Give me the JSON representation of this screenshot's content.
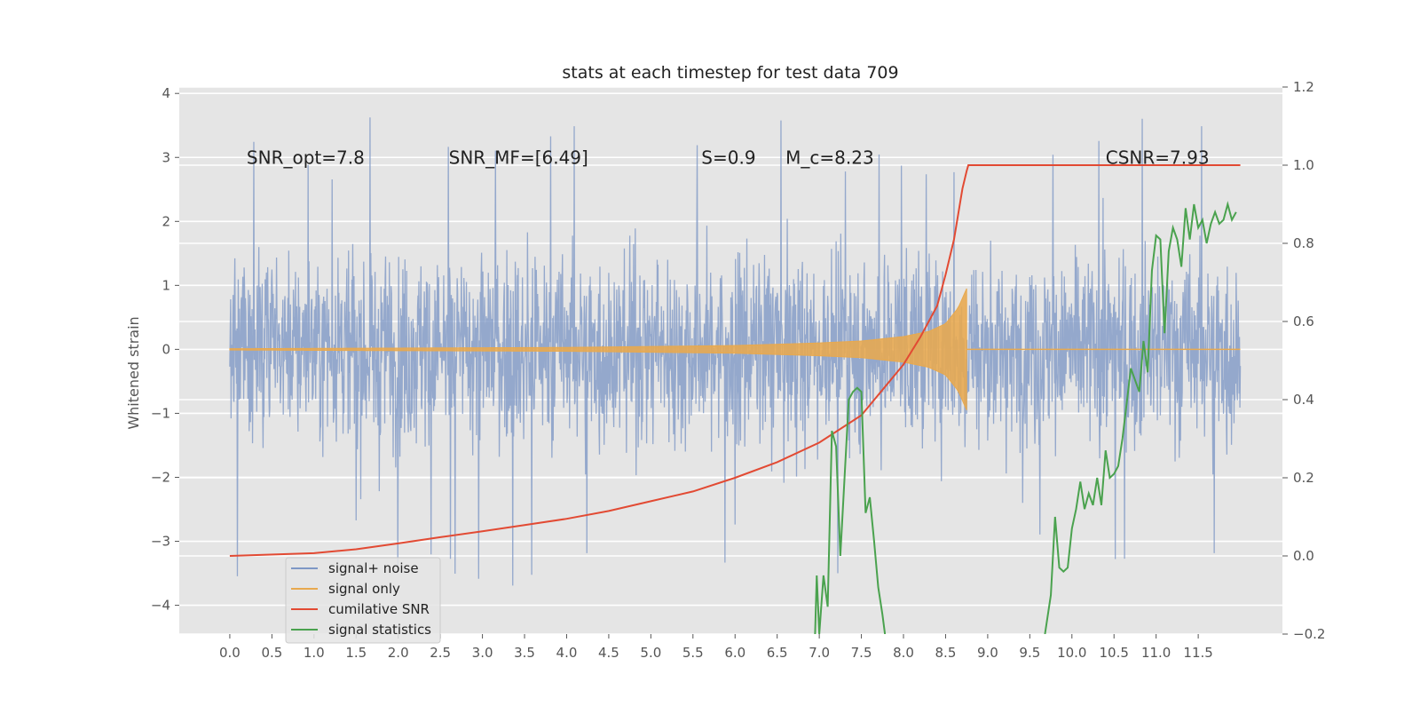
{
  "chart_data": {
    "type": "line",
    "title": "stats at each timestep for test data 709",
    "xlabel": "",
    "ylabel": "Whitened strain",
    "y2label": "",
    "xlim": [
      -0.6,
      12.5
    ],
    "ylim": [
      -4.45,
      4.1
    ],
    "y2lim": [
      -0.2,
      1.2
    ],
    "x_ticks": [
      "0.0",
      "0.5",
      "1.0",
      "1.5",
      "2.0",
      "2.5",
      "3.0",
      "3.5",
      "4.0",
      "4.5",
      "5.0",
      "5.5",
      "6.0",
      "6.5",
      "7.0",
      "7.5",
      "8.0",
      "8.5",
      "9.0",
      "9.5",
      "10.0",
      "10.5",
      "11.0",
      "11.5"
    ],
    "y_ticks": [
      "4",
      "3",
      "2",
      "1",
      "0",
      "−1",
      "−2",
      "−3",
      "−4"
    ],
    "y2_ticks": [
      "1.2",
      "1.0",
      "0.8",
      "0.6",
      "0.4",
      "0.2",
      "0.0",
      "−0.2"
    ],
    "grid": true,
    "legend_position": "lower-left",
    "annotations": [
      {
        "text": "SNR_opt=7.8",
        "x": 0.2,
        "y": 3.0
      },
      {
        "text": "SNR_MF=[6.49]",
        "x": 2.6,
        "y": 3.0
      },
      {
        "text": "S=0.9",
        "x": 5.6,
        "y": 3.0
      },
      {
        "text": "M_c=8.23",
        "x": 6.6,
        "y": 3.0
      },
      {
        "text": "CSNR=7.93",
        "x": 10.4,
        "y": 3.0
      }
    ],
    "series": [
      {
        "name": "signal+ noise",
        "axis": "left",
        "color": "#7f98c6",
        "description": "whitened strain noise, roughly +/-2.5 with peaks to about +/-3.7",
        "envelope_typical": 2.4,
        "envelope_peak": 3.7,
        "x_range": [
          0.0,
          12.0
        ]
      },
      {
        "name": "signal only",
        "axis": "left",
        "color": "#e8a94e",
        "description": "chirp signal growing in amplitude, ending at merger near t=8.75",
        "amplitude_points": [
          [
            0.0,
            0.01
          ],
          [
            4.0,
            0.03
          ],
          [
            6.0,
            0.06
          ],
          [
            7.0,
            0.1
          ],
          [
            7.5,
            0.13
          ],
          [
            8.0,
            0.2
          ],
          [
            8.3,
            0.28
          ],
          [
            8.5,
            0.4
          ],
          [
            8.65,
            0.65
          ],
          [
            8.75,
            0.95
          ]
        ],
        "merger_time": 8.75,
        "x_range": [
          0.0,
          12.0
        ]
      },
      {
        "name": "cumilative SNR",
        "axis": "right",
        "color": "#e24a33",
        "x": [
          0.0,
          1.0,
          1.5,
          2.0,
          2.5,
          3.0,
          3.5,
          4.0,
          4.5,
          5.0,
          5.5,
          6.0,
          6.5,
          7.0,
          7.5,
          8.0,
          8.2,
          8.4,
          8.5,
          8.6,
          8.7,
          8.75,
          8.77,
          12.0
        ],
        "y": [
          0.0,
          0.007,
          0.017,
          0.032,
          0.048,
          0.063,
          0.079,
          0.095,
          0.115,
          0.14,
          0.165,
          0.2,
          0.24,
          0.29,
          0.36,
          0.49,
          0.56,
          0.64,
          0.72,
          0.81,
          0.94,
          0.985,
          1.0,
          1.0
        ]
      },
      {
        "name": "signal statistics",
        "axis": "right",
        "color": "#4aa24e",
        "segments": [
          {
            "x": [
              6.95,
              6.97,
              7.0,
              7.05,
              7.1,
              7.15,
              7.2,
              7.25,
              7.3,
              7.35,
              7.4,
              7.45,
              7.5,
              7.55,
              7.6,
              7.65,
              7.7,
              7.75,
              7.78
            ],
            "y": [
              -0.2,
              -0.05,
              -0.2,
              -0.05,
              -0.13,
              0.32,
              0.28,
              0.0,
              0.2,
              0.4,
              0.42,
              0.43,
              0.42,
              0.11,
              0.15,
              0.04,
              -0.08,
              -0.15,
              -0.2
            ]
          },
          {
            "x": [
              9.68,
              9.75,
              9.8,
              9.85,
              9.9,
              9.95,
              10.0,
              10.05,
              10.1,
              10.15,
              10.2,
              10.25,
              10.3,
              10.35,
              10.4,
              10.45,
              10.5,
              10.55,
              10.6,
              10.7,
              10.8,
              10.85,
              10.9,
              10.95,
              11.0,
              11.05,
              11.1,
              11.15,
              11.2,
              11.25,
              11.3,
              11.35,
              11.4,
              11.45,
              11.5,
              11.55,
              11.6,
              11.65,
              11.7,
              11.75,
              11.8,
              11.85,
              11.9,
              11.95
            ],
            "y": [
              -0.2,
              -0.1,
              0.1,
              -0.03,
              -0.04,
              -0.03,
              0.07,
              0.12,
              0.19,
              0.12,
              0.16,
              0.13,
              0.2,
              0.13,
              0.27,
              0.2,
              0.21,
              0.23,
              0.3,
              0.48,
              0.42,
              0.55,
              0.47,
              0.73,
              0.82,
              0.81,
              0.57,
              0.78,
              0.84,
              0.81,
              0.74,
              0.89,
              0.81,
              0.9,
              0.84,
              0.86,
              0.8,
              0.85,
              0.88,
              0.85,
              0.86,
              0.9,
              0.86,
              0.88
            ]
          }
        ]
      }
    ]
  }
}
